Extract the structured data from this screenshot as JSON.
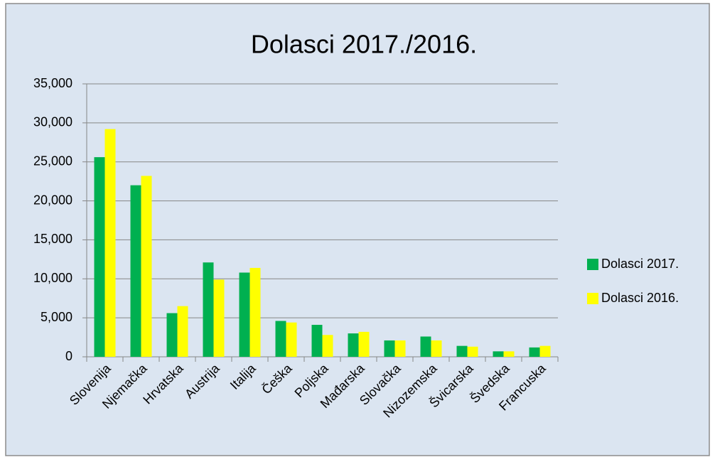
{
  "chart_data": {
    "type": "bar",
    "title": "Dolasci 2017./2016.",
    "categories": [
      "Slovenija",
      "Njemačka",
      "Hrvatska",
      "Austrija",
      "Italija",
      "Češka",
      "Poljska",
      "Mađarska",
      "Slovačka",
      "Nizozemska",
      "Švicarska",
      "Švedska",
      "Francuska"
    ],
    "series": [
      {
        "name": "Dolasci 2017.",
        "color": "#00b050",
        "values": [
          25600,
          22000,
          5600,
          12100,
          10800,
          4600,
          4100,
          3000,
          2100,
          2600,
          1400,
          700,
          1200
        ]
      },
      {
        "name": "Dolasci 2016.",
        "color": "#ffff00",
        "values": [
          29200,
          23200,
          6500,
          9900,
          11400,
          4400,
          2800,
          3200,
          2100,
          2100,
          1300,
          700,
          1400
        ]
      }
    ],
    "ylim": [
      0,
      35000
    ],
    "yticks": [
      0,
      {
        "value": 5000,
        "label": "5,000"
      },
      {
        "value": 10000,
        "label": "10,000"
      },
      {
        "value": 15000,
        "label": "15,000"
      },
      {
        "value": 20000,
        "label": "20,000"
      },
      {
        "value": 25000,
        "label": "25,000"
      },
      {
        "value": 30000,
        "label": "30,000"
      },
      {
        "value": 35000,
        "label": "35,000"
      }
    ],
    "grid": true,
    "legend": "right"
  }
}
